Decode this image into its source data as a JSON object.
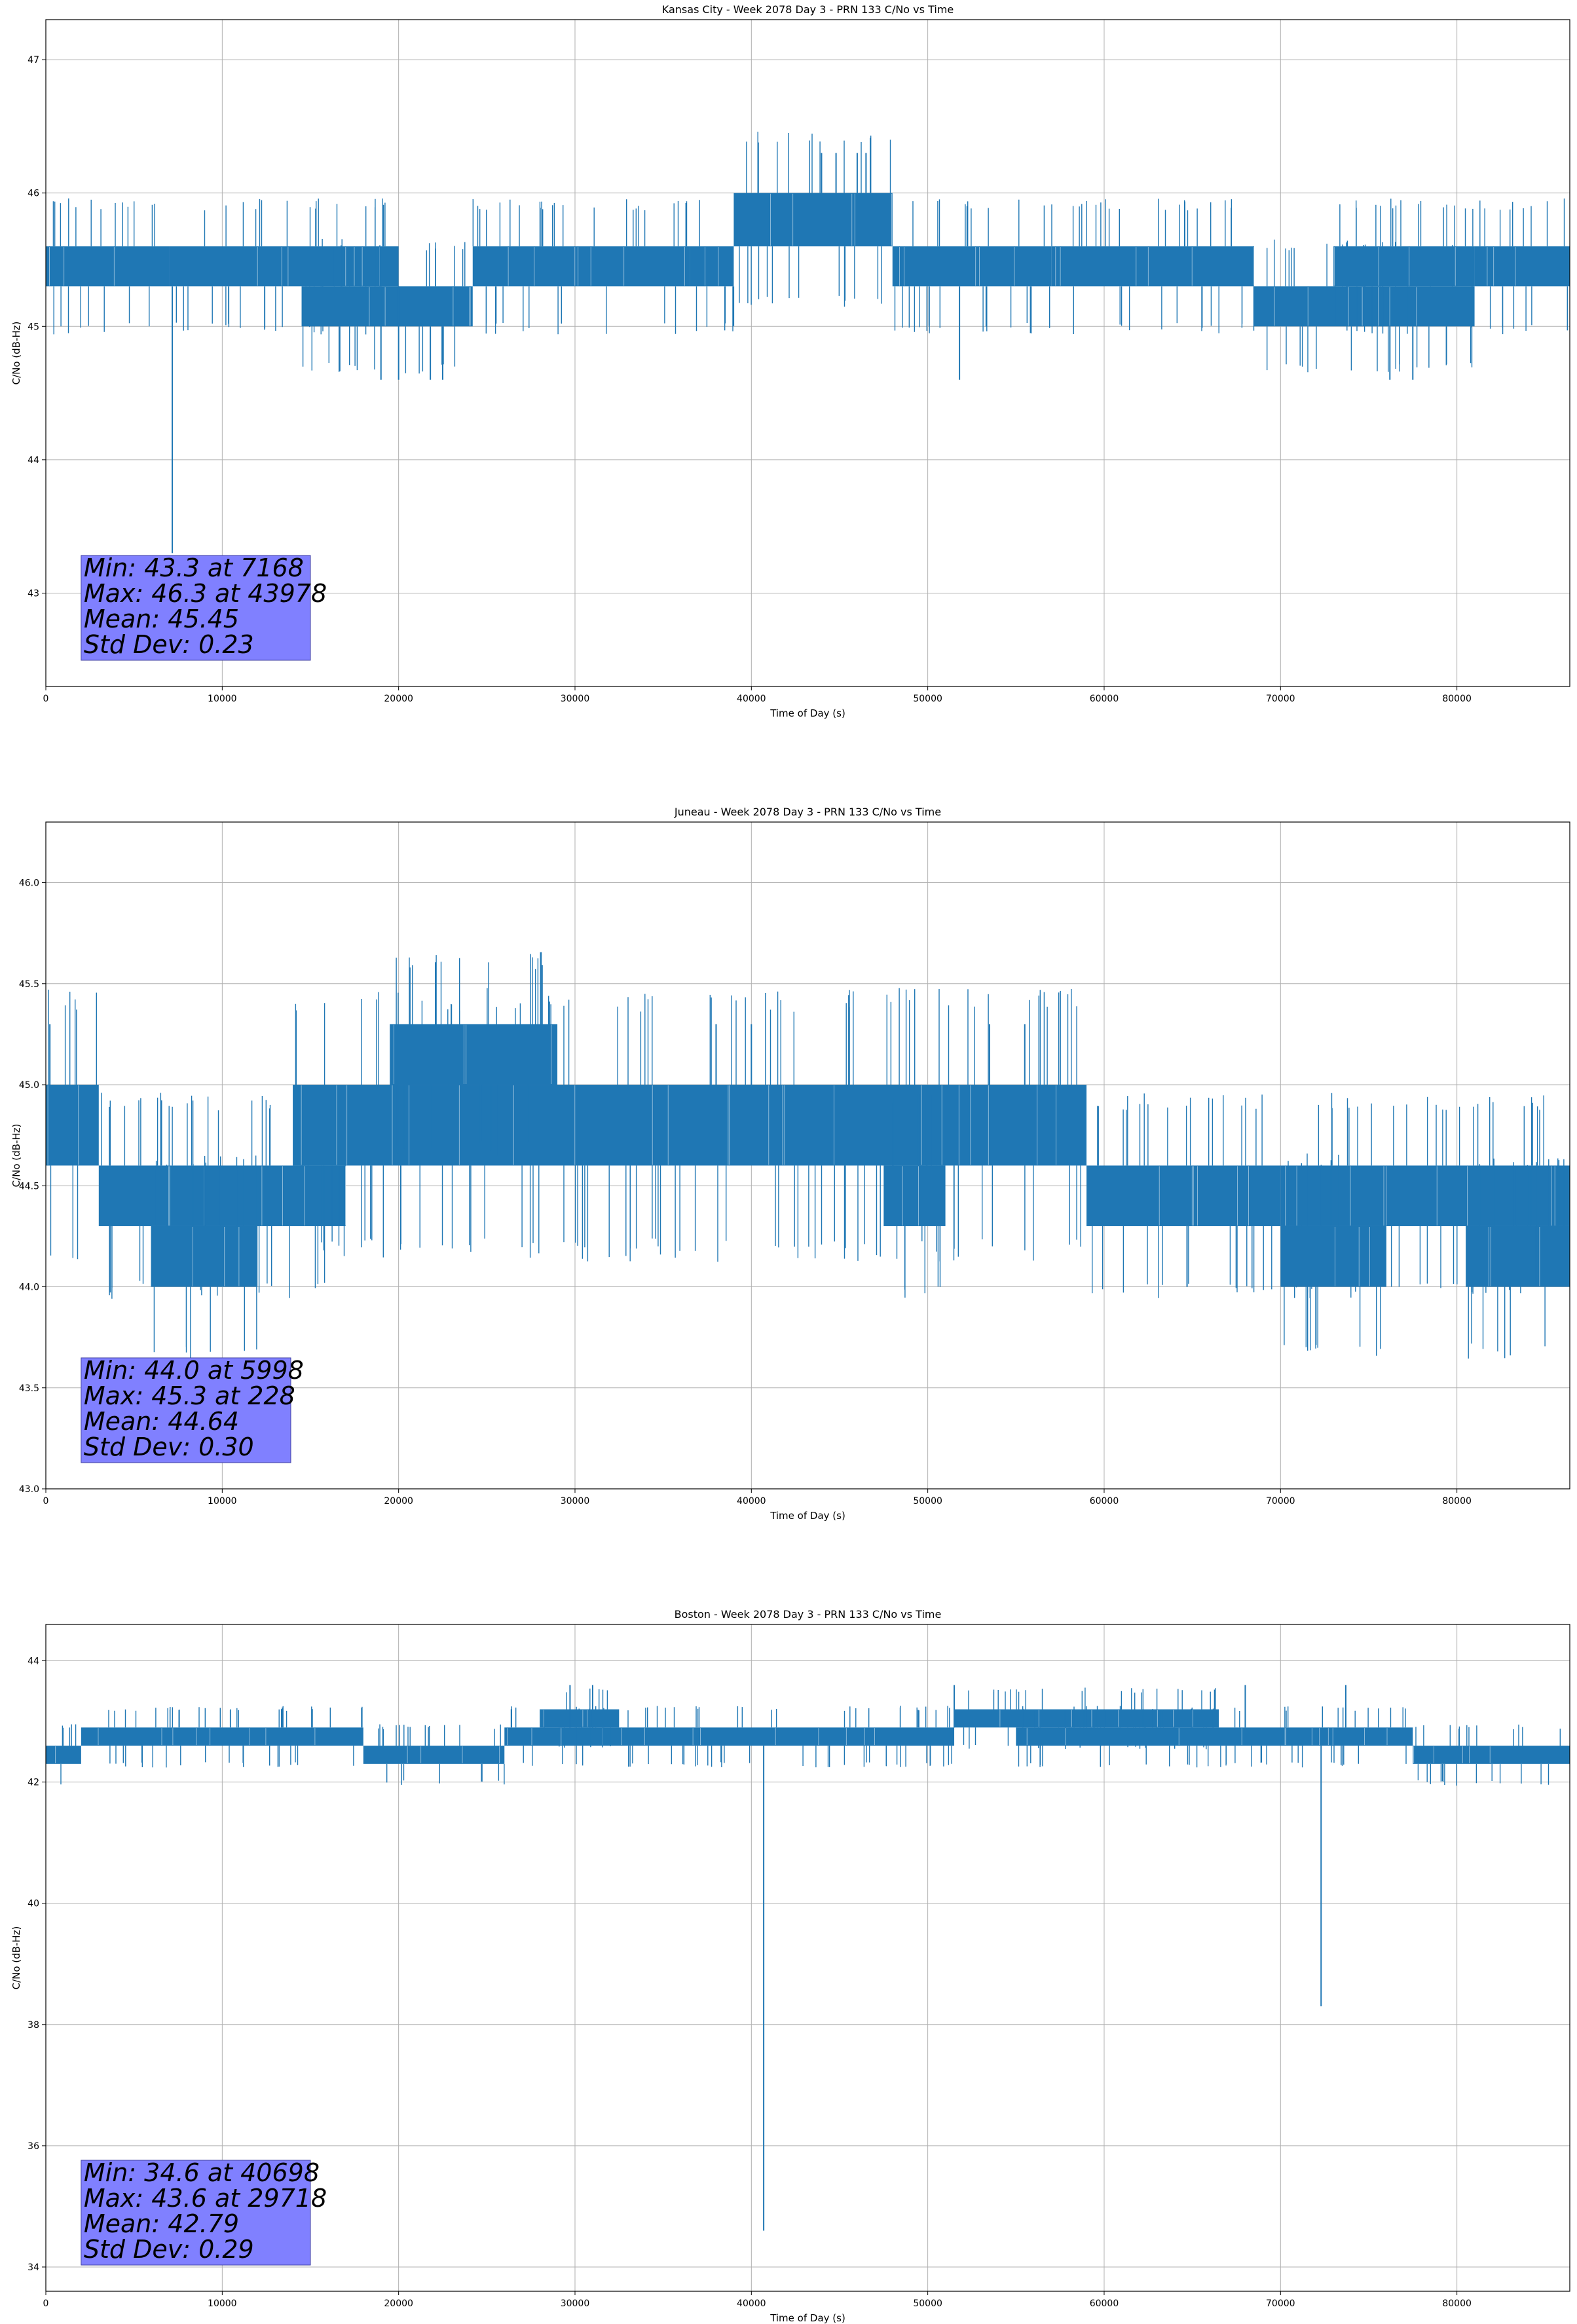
{
  "chart_data": [
    {
      "type": "line",
      "title": "Kansas City - Week 2078 Day 3 - PRN 133 C/No vs Time",
      "xlabel": "Time of Day (s)",
      "ylabel": "C/No (dB-Hz)",
      "xlim": [
        0,
        86400
      ],
      "ylim": [
        42.3,
        47.3
      ],
      "xticks": [
        0,
        10000,
        20000,
        30000,
        40000,
        50000,
        60000,
        70000,
        80000
      ],
      "yticks": [
        43,
        44,
        45,
        46,
        47
      ],
      "ytick_decimals": 0,
      "grid": true,
      "series_color": "#1f77b4",
      "segments": [
        {
          "x": [
            0,
            7000
          ],
          "low": 45.3,
          "high": 45.6
        },
        {
          "x": [
            7000,
            20000
          ],
          "low": 45.3,
          "high": 45.6
        },
        {
          "x": [
            14500,
            24200
          ],
          "low": 45.0,
          "high": 45.3
        },
        {
          "x": [
            24200,
            36500
          ],
          "low": 45.3,
          "high": 45.6
        },
        {
          "x": [
            36500,
            39000
          ],
          "low": 45.3,
          "high": 45.6
        },
        {
          "x": [
            39000,
            48000
          ],
          "low": 45.6,
          "high": 46.0
        },
        {
          "x": [
            48000,
            57000
          ],
          "low": 45.3,
          "high": 45.6
        },
        {
          "x": [
            57000,
            68500
          ],
          "low": 45.3,
          "high": 45.6
        },
        {
          "x": [
            68500,
            81000
          ],
          "low": 45.0,
          "high": 45.3
        },
        {
          "x": [
            73000,
            81000
          ],
          "low": 45.3,
          "high": 45.6
        },
        {
          "x": [
            81000,
            86400
          ],
          "low": 45.3,
          "high": 45.6
        }
      ],
      "spikes": [
        {
          "x": 7168,
          "y": 43.3
        },
        {
          "x": 19000,
          "y": 44.6
        },
        {
          "x": 20000,
          "y": 44.6
        },
        {
          "x": 21800,
          "y": 44.6
        },
        {
          "x": 22500,
          "y": 44.6
        },
        {
          "x": 51800,
          "y": 44.6
        },
        {
          "x": 76200,
          "y": 44.6
        },
        {
          "x": 77500,
          "y": 44.6
        },
        {
          "x": 43978,
          "y": 46.3
        },
        {
          "x": 44800,
          "y": 46.3
        },
        {
          "x": 46000,
          "y": 46.3
        },
        {
          "x": 46500,
          "y": 46.3
        }
      ],
      "annotation": [
        "Min: 43.3 at 7168",
        "Max: 46.3 at 43978",
        "Mean: 45.45",
        "Std Dev: 0.23"
      ]
    },
    {
      "type": "line",
      "title": "Juneau - Week 2078 Day 3 - PRN 133 C/No vs Time",
      "xlabel": "Time of Day (s)",
      "ylabel": "C/No (dB-Hz)",
      "xlim": [
        0,
        86400
      ],
      "ylim": [
        43.0,
        46.3
      ],
      "xticks": [
        0,
        10000,
        20000,
        30000,
        40000,
        50000,
        60000,
        70000,
        80000
      ],
      "yticks": [
        43.0,
        43.5,
        44.0,
        44.5,
        45.0,
        45.5,
        46.0
      ],
      "ytick_decimals": 1,
      "grid": true,
      "series_color": "#1f77b4",
      "segments": [
        {
          "x": [
            0,
            3000
          ],
          "low": 44.6,
          "high": 45.0
        },
        {
          "x": [
            3000,
            17000
          ],
          "low": 44.3,
          "high": 44.6
        },
        {
          "x": [
            6000,
            12000
          ],
          "low": 44.0,
          "high": 44.3
        },
        {
          "x": [
            14000,
            59000
          ],
          "low": 44.6,
          "high": 45.0
        },
        {
          "x": [
            19500,
            29000
          ],
          "low": 45.0,
          "high": 45.3
        },
        {
          "x": [
            47500,
            51000
          ],
          "low": 44.3,
          "high": 44.6
        },
        {
          "x": [
            59000,
            70000
          ],
          "low": 44.3,
          "high": 44.6
        },
        {
          "x": [
            70000,
            86400
          ],
          "low": 44.3,
          "high": 44.6
        },
        {
          "x": [
            70000,
            76000
          ],
          "low": 44.0,
          "high": 44.3
        },
        {
          "x": [
            80500,
            86400
          ],
          "low": 44.0,
          "high": 44.3
        }
      ],
      "spikes": [
        {
          "x": 5998,
          "y": 44.0
        },
        {
          "x": 228,
          "y": 45.3
        },
        {
          "x": 38000,
          "y": 45.3
        },
        {
          "x": 40000,
          "y": 45.3
        },
        {
          "x": 53500,
          "y": 45.3
        },
        {
          "x": 55500,
          "y": 45.3
        },
        {
          "x": 64700,
          "y": 44.0
        },
        {
          "x": 84500,
          "y": 44.0
        }
      ],
      "annotation": [
        "Min: 44.0 at 5998",
        "Max: 45.3 at 228",
        "Mean: 44.64",
        "Std Dev: 0.30"
      ]
    },
    {
      "type": "line",
      "title": "Boston - Week 2078 Day 3 - PRN 133 C/No vs Time",
      "xlabel": "Time of Day (s)",
      "ylabel": "C/No (dB-Hz)",
      "xlim": [
        0,
        86400
      ],
      "ylim": [
        33.6,
        44.6
      ],
      "xticks": [
        0,
        10000,
        20000,
        30000,
        40000,
        50000,
        60000,
        70000,
        80000
      ],
      "yticks": [
        34,
        36,
        38,
        40,
        42,
        44
      ],
      "ytick_decimals": 0,
      "grid": true,
      "series_color": "#1f77b4",
      "segments": [
        {
          "x": [
            0,
            2000
          ],
          "low": 42.3,
          "high": 42.6
        },
        {
          "x": [
            2000,
            18000
          ],
          "low": 42.6,
          "high": 42.9
        },
        {
          "x": [
            18000,
            26000
          ],
          "low": 42.3,
          "high": 42.6
        },
        {
          "x": [
            26000,
            51500
          ],
          "low": 42.6,
          "high": 42.9
        },
        {
          "x": [
            28000,
            32500
          ],
          "low": 42.9,
          "high": 43.2
        },
        {
          "x": [
            51500,
            66500
          ],
          "low": 42.9,
          "high": 43.2
        },
        {
          "x": [
            55000,
            77500
          ],
          "low": 42.6,
          "high": 42.9
        },
        {
          "x": [
            77500,
            86400
          ],
          "low": 42.3,
          "high": 42.6
        }
      ],
      "spikes": [
        {
          "x": 40698,
          "y": 34.6
        },
        {
          "x": 72300,
          "y": 38.3
        },
        {
          "x": 29718,
          "y": 43.6
        },
        {
          "x": 31000,
          "y": 43.6
        },
        {
          "x": 51500,
          "y": 43.6
        },
        {
          "x": 68000,
          "y": 43.6
        },
        {
          "x": 73700,
          "y": 43.6
        }
      ],
      "annotation": [
        "Min: 34.6 at 40698",
        "Max: 43.6 at 29718",
        "Mean: 42.79",
        "Std Dev: 0.29"
      ]
    }
  ]
}
